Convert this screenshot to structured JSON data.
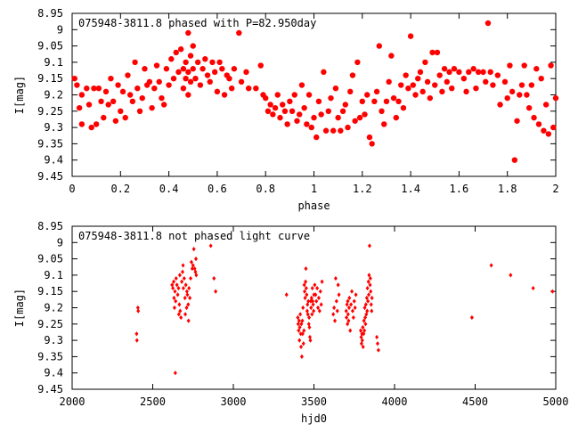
{
  "chart_data": [
    {
      "type": "scatter",
      "title": "075948-3811.8 phased with P=82.950day",
      "xlabel": "phase",
      "ylabel": "I[mag]",
      "xlim": [
        0,
        2
      ],
      "ylim": [
        9.45,
        8.95
      ],
      "y_inverted": true,
      "x_ticks": [
        "0",
        "0.2",
        "0.4",
        "0.6",
        "0.8",
        "1",
        "1.2",
        "1.4",
        "1.6",
        "1.8",
        "2"
      ],
      "y_ticks": [
        "8.95",
        "9",
        "9.05",
        "9.1",
        "9.15",
        "9.2",
        "9.25",
        "9.3",
        "9.35",
        "9.4",
        "9.45"
      ],
      "marker": "filled-circle-large",
      "color": "#ff0000",
      "points": [
        [
          0.01,
          9.15
        ],
        [
          0.02,
          9.17
        ],
        [
          0.03,
          9.24
        ],
        [
          0.04,
          9.2
        ],
        [
          0.04,
          9.29
        ],
        [
          0.06,
          9.18
        ],
        [
          0.07,
          9.23
        ],
        [
          0.08,
          9.3
        ],
        [
          0.09,
          9.18
        ],
        [
          0.1,
          9.29
        ],
        [
          0.11,
          9.18
        ],
        [
          0.12,
          9.22
        ],
        [
          0.13,
          9.27
        ],
        [
          0.14,
          9.19
        ],
        [
          0.15,
          9.23
        ],
        [
          0.16,
          9.15
        ],
        [
          0.17,
          9.22
        ],
        [
          0.18,
          9.28
        ],
        [
          0.19,
          9.17
        ],
        [
          0.2,
          9.25
        ],
        [
          0.21,
          9.19
        ],
        [
          0.22,
          9.27
        ],
        [
          0.23,
          9.14
        ],
        [
          0.24,
          9.2
        ],
        [
          0.25,
          9.22
        ],
        [
          0.26,
          9.1
        ],
        [
          0.27,
          9.18
        ],
        [
          0.28,
          9.25
        ],
        [
          0.29,
          9.21
        ],
        [
          0.3,
          9.12
        ],
        [
          0.31,
          9.17
        ],
        [
          0.32,
          9.16
        ],
        [
          0.33,
          9.24
        ],
        [
          0.34,
          9.18
        ],
        [
          0.35,
          9.11
        ],
        [
          0.36,
          9.16
        ],
        [
          0.37,
          9.21
        ],
        [
          0.38,
          9.23
        ],
        [
          0.39,
          9.12
        ],
        [
          0.4,
          9.17
        ],
        [
          0.41,
          9.09
        ],
        [
          0.42,
          9.15
        ],
        [
          0.43,
          9.07
        ],
        [
          0.44,
          9.13
        ],
        [
          0.45,
          9.06
        ],
        [
          0.46,
          9.12
        ],
        [
          0.46,
          9.18
        ],
        [
          0.47,
          9.1
        ],
        [
          0.47,
          9.15
        ],
        [
          0.48,
          9.01
        ],
        [
          0.48,
          9.13
        ],
        [
          0.48,
          9.2
        ],
        [
          0.49,
          9.08
        ],
        [
          0.49,
          9.16
        ],
        [
          0.5,
          9.12
        ],
        [
          0.5,
          9.05
        ],
        [
          0.51,
          9.15
        ],
        [
          0.52,
          9.1
        ],
        [
          0.53,
          9.17
        ],
        [
          0.54,
          9.12
        ],
        [
          0.55,
          9.09
        ],
        [
          0.56,
          9.14
        ],
        [
          0.57,
          9.16
        ],
        [
          0.58,
          9.1
        ],
        [
          0.59,
          9.13
        ],
        [
          0.6,
          9.19
        ],
        [
          0.61,
          9.1
        ],
        [
          0.62,
          9.12
        ],
        [
          0.63,
          9.2
        ],
        [
          0.64,
          9.14
        ],
        [
          0.65,
          9.15
        ],
        [
          0.66,
          9.18
        ],
        [
          0.67,
          9.12
        ],
        [
          0.69,
          9.01
        ],
        [
          0.7,
          9.16
        ],
        [
          0.72,
          9.13
        ],
        [
          0.73,
          9.18
        ],
        [
          0.76,
          9.18
        ],
        [
          0.78,
          9.11
        ],
        [
          0.79,
          9.2
        ],
        [
          0.8,
          9.21
        ],
        [
          0.81,
          9.25
        ],
        [
          0.82,
          9.23
        ],
        [
          0.83,
          9.26
        ],
        [
          0.84,
          9.24
        ],
        [
          0.85,
          9.2
        ],
        [
          0.86,
          9.27
        ],
        [
          0.87,
          9.23
        ],
        [
          0.88,
          9.25
        ],
        [
          0.89,
          9.29
        ],
        [
          0.9,
          9.22
        ],
        [
          0.91,
          9.25
        ],
        [
          0.92,
          9.2
        ],
        [
          0.93,
          9.28
        ],
        [
          0.94,
          9.26
        ],
        [
          0.95,
          9.17
        ],
        [
          0.96,
          9.24
        ],
        [
          0.97,
          9.29
        ],
        [
          0.98,
          9.2
        ],
        [
          0.99,
          9.3
        ],
        [
          1.0,
          9.27
        ],
        [
          1.01,
          9.33
        ],
        [
          1.02,
          9.22
        ],
        [
          1.03,
          9.26
        ],
        [
          1.04,
          9.13
        ],
        [
          1.05,
          9.31
        ],
        [
          1.06,
          9.25
        ],
        [
          1.07,
          9.21
        ],
        [
          1.08,
          9.31
        ],
        [
          1.09,
          9.18
        ],
        [
          1.1,
          9.27
        ],
        [
          1.11,
          9.31
        ],
        [
          1.12,
          9.25
        ],
        [
          1.13,
          9.23
        ],
        [
          1.14,
          9.3
        ],
        [
          1.15,
          9.19
        ],
        [
          1.16,
          9.14
        ],
        [
          1.17,
          9.28
        ],
        [
          1.18,
          9.1
        ],
        [
          1.19,
          9.27
        ],
        [
          1.2,
          9.22
        ],
        [
          1.21,
          9.26
        ],
        [
          1.22,
          9.2
        ],
        [
          1.23,
          9.33
        ],
        [
          1.24,
          9.35
        ],
        [
          1.25,
          9.22
        ],
        [
          1.26,
          9.19
        ],
        [
          1.27,
          9.05
        ],
        [
          1.28,
          9.25
        ],
        [
          1.29,
          9.29
        ],
        [
          1.3,
          9.22
        ],
        [
          1.31,
          9.16
        ],
        [
          1.32,
          9.08
        ],
        [
          1.33,
          9.21
        ],
        [
          1.34,
          9.27
        ],
        [
          1.35,
          9.22
        ],
        [
          1.36,
          9.17
        ],
        [
          1.37,
          9.24
        ],
        [
          1.38,
          9.14
        ],
        [
          1.39,
          9.18
        ],
        [
          1.4,
          9.02
        ],
        [
          1.41,
          9.17
        ],
        [
          1.42,
          9.2
        ],
        [
          1.43,
          9.15
        ],
        [
          1.44,
          9.13
        ],
        [
          1.45,
          9.19
        ],
        [
          1.46,
          9.1
        ],
        [
          1.47,
          9.16
        ],
        [
          1.48,
          9.21
        ],
        [
          1.49,
          9.07
        ],
        [
          1.5,
          9.17
        ],
        [
          1.51,
          9.07
        ],
        [
          1.52,
          9.14
        ],
        [
          1.53,
          9.19
        ],
        [
          1.54,
          9.12
        ],
        [
          1.55,
          9.16
        ],
        [
          1.56,
          9.13
        ],
        [
          1.57,
          9.18
        ],
        [
          1.58,
          9.12
        ],
        [
          1.6,
          9.13
        ],
        [
          1.62,
          9.15
        ],
        [
          1.63,
          9.19
        ],
        [
          1.64,
          9.13
        ],
        [
          1.66,
          9.12
        ],
        [
          1.67,
          9.18
        ],
        [
          1.68,
          9.13
        ],
        [
          1.7,
          9.13
        ],
        [
          1.71,
          9.16
        ],
        [
          1.72,
          8.98
        ],
        [
          1.73,
          9.13
        ],
        [
          1.74,
          9.17
        ],
        [
          1.76,
          9.14
        ],
        [
          1.77,
          9.23
        ],
        [
          1.79,
          9.16
        ],
        [
          1.8,
          9.21
        ],
        [
          1.81,
          9.11
        ],
        [
          1.82,
          9.19
        ],
        [
          1.83,
          9.4
        ],
        [
          1.84,
          9.28
        ],
        [
          1.85,
          9.2
        ],
        [
          1.86,
          9.17
        ],
        [
          1.87,
          9.11
        ],
        [
          1.88,
          9.2
        ],
        [
          1.89,
          9.24
        ],
        [
          1.9,
          9.17
        ],
        [
          1.91,
          9.27
        ],
        [
          1.92,
          9.12
        ],
        [
          1.93,
          9.29
        ],
        [
          1.94,
          9.15
        ],
        [
          1.95,
          9.31
        ],
        [
          1.96,
          9.23
        ],
        [
          1.97,
          9.32
        ],
        [
          1.98,
          9.11
        ],
        [
          1.99,
          9.3
        ],
        [
          2.0,
          9.21
        ]
      ]
    },
    {
      "type": "scatter",
      "title": "075948-3811.8 not phased light curve",
      "xlabel": "hjd0",
      "ylabel": "I[mag]",
      "xlim": [
        2000,
        5000
      ],
      "ylim": [
        9.45,
        8.95
      ],
      "y_inverted": true,
      "x_ticks": [
        "2000",
        "2500",
        "3000",
        "3500",
        "4000",
        "4500",
        "5000"
      ],
      "y_ticks": [
        "8.95",
        "9",
        "9.05",
        "9.1",
        "9.15",
        "9.2",
        "9.25",
        "9.3",
        "9.35",
        "9.4",
        "9.45"
      ],
      "marker": "filled-diamond-small",
      "color": "#ff0000",
      "points": [
        [
          2400,
          9.28
        ],
        [
          2402,
          9.3
        ],
        [
          2408,
          9.2
        ],
        [
          2410,
          9.21
        ],
        [
          2620,
          9.13
        ],
        [
          2625,
          9.14
        ],
        [
          2630,
          9.12
        ],
        [
          2632,
          9.17
        ],
        [
          2635,
          9.2
        ],
        [
          2638,
          9.15
        ],
        [
          2640,
          9.4
        ],
        [
          2642,
          9.18
        ],
        [
          2645,
          9.11
        ],
        [
          2650,
          9.13
        ],
        [
          2655,
          9.16
        ],
        [
          2660,
          9.14
        ],
        [
          2662,
          9.22
        ],
        [
          2665,
          9.19
        ],
        [
          2668,
          9.1
        ],
        [
          2670,
          9.21
        ],
        [
          2675,
          9.23
        ],
        [
          2680,
          9.12
        ],
        [
          2685,
          9.09
        ],
        [
          2688,
          9.07
        ],
        [
          2690,
          9.14
        ],
        [
          2695,
          9.11
        ],
        [
          2700,
          9.17
        ],
        [
          2702,
          9.22
        ],
        [
          2705,
          9.13
        ],
        [
          2710,
          9.2
        ],
        [
          2712,
          9.15
        ],
        [
          2715,
          9.16
        ],
        [
          2720,
          9.19
        ],
        [
          2722,
          9.24
        ],
        [
          2725,
          9.14
        ],
        [
          2730,
          9.17
        ],
        [
          2735,
          9.11
        ],
        [
          2740,
          9.06
        ],
        [
          2745,
          9.08
        ],
        [
          2750,
          9.07
        ],
        [
          2755,
          9.02
        ],
        [
          2760,
          9.08
        ],
        [
          2765,
          9.09
        ],
        [
          2768,
          9.05
        ],
        [
          2770,
          9.1
        ],
        [
          2860,
          9.01
        ],
        [
          2880,
          9.11
        ],
        [
          2890,
          9.15
        ],
        [
          3330,
          9.16
        ],
        [
          3400,
          9.23
        ],
        [
          3402,
          9.25
        ],
        [
          3405,
          9.27
        ],
        [
          3408,
          9.24
        ],
        [
          3410,
          9.3
        ],
        [
          3412,
          9.26
        ],
        [
          3415,
          9.22
        ],
        [
          3418,
          9.28
        ],
        [
          3420,
          9.32
        ],
        [
          3422,
          9.25
        ],
        [
          3425,
          9.35
        ],
        [
          3428,
          9.24
        ],
        [
          3430,
          9.28
        ],
        [
          3432,
          9.2
        ],
        [
          3435,
          9.31
        ],
        [
          3438,
          9.27
        ],
        [
          3440,
          9.13
        ],
        [
          3442,
          9.15
        ],
        [
          3445,
          9.17
        ],
        [
          3448,
          9.12
        ],
        [
          3450,
          9.08
        ],
        [
          3452,
          9.14
        ],
        [
          3455,
          9.16
        ],
        [
          3458,
          9.21
        ],
        [
          3460,
          9.19
        ],
        [
          3462,
          9.22
        ],
        [
          3465,
          9.18
        ],
        [
          3468,
          9.25
        ],
        [
          3470,
          9.23
        ],
        [
          3472,
          9.26
        ],
        [
          3475,
          9.29
        ],
        [
          3478,
          9.3
        ],
        [
          3480,
          9.18
        ],
        [
          3482,
          9.2
        ],
        [
          3485,
          9.17
        ],
        [
          3488,
          9.22
        ],
        [
          3490,
          9.14
        ],
        [
          3492,
          9.18
        ],
        [
          3495,
          9.19
        ],
        [
          3498,
          9.21
        ],
        [
          3500,
          9.16
        ],
        [
          3505,
          9.13
        ],
        [
          3510,
          9.16
        ],
        [
          3515,
          9.18
        ],
        [
          3520,
          9.14
        ],
        [
          3525,
          9.2
        ],
        [
          3530,
          9.17
        ],
        [
          3535,
          9.21
        ],
        [
          3540,
          9.15
        ],
        [
          3545,
          9.19
        ],
        [
          3550,
          9.12
        ],
        [
          3620,
          9.22
        ],
        [
          3625,
          9.2
        ],
        [
          3630,
          9.24
        ],
        [
          3635,
          9.11
        ],
        [
          3640,
          9.18
        ],
        [
          3645,
          9.21
        ],
        [
          3650,
          9.13
        ],
        [
          3655,
          9.16
        ],
        [
          3700,
          9.21
        ],
        [
          3702,
          9.23
        ],
        [
          3705,
          9.19
        ],
        [
          3708,
          9.25
        ],
        [
          3710,
          9.18
        ],
        [
          3712,
          9.22
        ],
        [
          3715,
          9.24
        ],
        [
          3718,
          9.2
        ],
        [
          3720,
          9.17
        ],
        [
          3725,
          9.27
        ],
        [
          3730,
          9.19
        ],
        [
          3735,
          9.15
        ],
        [
          3740,
          9.21
        ],
        [
          3745,
          9.23
        ],
        [
          3750,
          9.18
        ],
        [
          3755,
          9.2
        ],
        [
          3760,
          9.16
        ],
        [
          3790,
          9.27
        ],
        [
          3793,
          9.29
        ],
        [
          3795,
          9.31
        ],
        [
          3798,
          9.28
        ],
        [
          3800,
          9.3
        ],
        [
          3803,
          9.26
        ],
        [
          3805,
          9.32
        ],
        [
          3808,
          9.28
        ],
        [
          3810,
          9.24
        ],
        [
          3813,
          9.27
        ],
        [
          3815,
          9.2
        ],
        [
          3818,
          9.23
        ],
        [
          3820,
          9.25
        ],
        [
          3822,
          9.19
        ],
        [
          3825,
          9.22
        ],
        [
          3828,
          9.17
        ],
        [
          3830,
          9.21
        ],
        [
          3832,
          9.14
        ],
        [
          3835,
          9.18
        ],
        [
          3838,
          9.12
        ],
        [
          3840,
          9.16
        ],
        [
          3842,
          9.1
        ],
        [
          3845,
          9.01
        ],
        [
          3848,
          9.13
        ],
        [
          3850,
          9.11
        ],
        [
          3852,
          9.15
        ],
        [
          3855,
          9.19
        ],
        [
          3858,
          9.21
        ],
        [
          3860,
          9.17
        ],
        [
          3890,
          9.29
        ],
        [
          3895,
          9.31
        ],
        [
          3900,
          9.33
        ],
        [
          4480,
          9.23
        ],
        [
          4600,
          9.07
        ],
        [
          4720,
          9.1
        ],
        [
          4860,
          9.14
        ],
        [
          4980,
          9.15
        ]
      ]
    }
  ]
}
